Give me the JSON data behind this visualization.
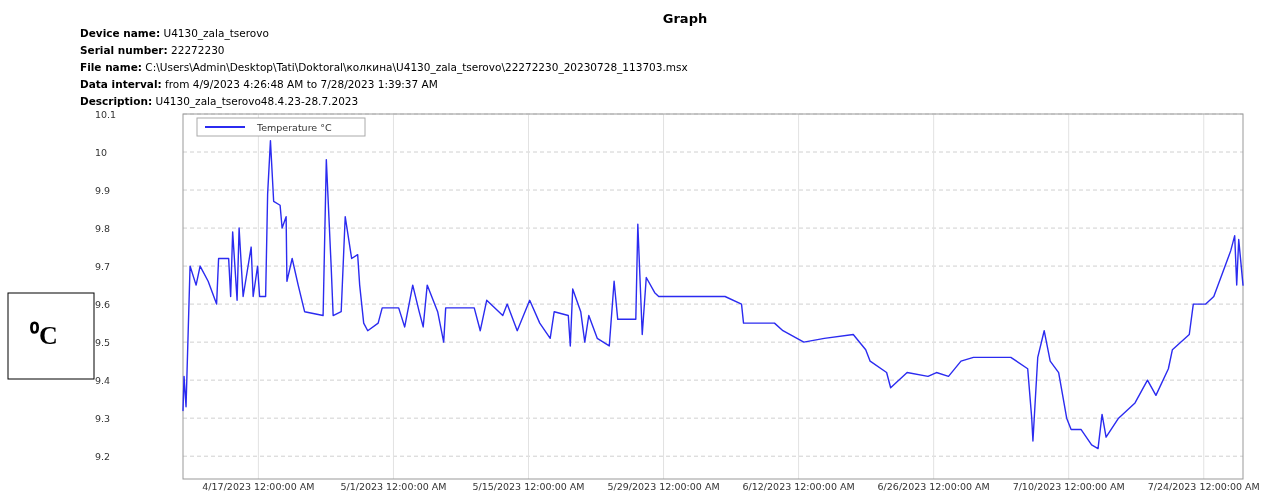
{
  "chart_data": {
    "type": "line",
    "title": "Graph",
    "annotations": [
      "Device name:  U4130_zala_tserovo",
      "Serial number:  22272230",
      "File name:  C:\\Users\\Admin\\Desktop\\Tati\\Doktoral\\колкина\\U4130_zala_tserovo\\22272230_20230728_113703.msx",
      "Data interval:  from 4/9/2023 4:26:48 AM to 7/28/2023 1:39:37 AM",
      "Description:  U4130_zala_tserovo48.4.23-28.7.2023"
    ],
    "ylabel": "⁰C",
    "xlim": [
      "2023-04-09T04:26",
      "2023-07-28T01:39"
    ],
    "xticks": [
      {
        "value": "2023-04-17",
        "label": "4/17/2023 12:00:00 AM"
      },
      {
        "value": "2023-05-01",
        "label": "5/1/2023 12:00:00 AM"
      },
      {
        "value": "2023-05-15",
        "label": "5/15/2023 12:00:00 AM"
      },
      {
        "value": "2023-05-29",
        "label": "5/29/2023 12:00:00 AM"
      },
      {
        "value": "2023-06-12",
        "label": "6/12/2023 12:00:00 AM"
      },
      {
        "value": "2023-06-26",
        "label": "6/26/2023 12:00:00 AM"
      },
      {
        "value": "2023-07-10",
        "label": "7/10/2023 12:00:00 AM"
      },
      {
        "value": "2023-07-24",
        "label": "7/24/2023 12:00:00 AM"
      }
    ],
    "ylim": [
      9.14,
      10.1
    ],
    "yticks": [
      9.2,
      9.3,
      9.4,
      9.5,
      9.6,
      9.7,
      9.8,
      9.9,
      10,
      10.1
    ],
    "grid": true,
    "legend": "top left",
    "marker": "none",
    "line_style": "solid",
    "series": [
      {
        "name": "Temperature °C",
        "color": "#2b2bf0",
        "x": [
          "2023-04-09T04:26",
          "2023-04-09T07:00",
          "2023-04-09T12:00",
          "2023-04-09T22:00",
          "2023-04-10T13:00",
          "2023-04-10T23:00",
          "2023-04-11T19:00",
          "2023-04-12T16:00",
          "2023-04-12T21:00",
          "2023-04-13T22:00",
          "2023-04-14T03:00",
          "2023-04-14T08:00",
          "2023-04-14T19:00",
          "2023-04-15T00:00",
          "2023-04-15T10:00",
          "2023-04-16T06:00",
          "2023-04-16T11:00",
          "2023-04-16T22:00",
          "2023-04-17T03:00",
          "2023-04-17T18:00",
          "2023-04-17T23:00",
          "2023-04-18T06:00",
          "2023-04-18T14:00",
          "2023-04-19T06:00",
          "2023-04-19T11:00",
          "2023-04-19T21:00",
          "2023-04-19T23:00",
          "2023-04-20T12:00",
          "2023-04-21T03:00",
          "2023-04-21T19:00",
          "2023-04-23T17:00",
          "2023-04-24T01:00",
          "2023-04-24T13:00",
          "2023-04-24T18:00",
          "2023-04-25T14:00",
          "2023-04-26T00:00",
          "2023-04-26T16:00",
          "2023-04-27T07:00",
          "2023-04-27T12:00",
          "2023-04-27T22:00",
          "2023-04-28T08:00",
          "2023-04-29T10:00",
          "2023-04-29T20:00",
          "2023-05-01T13:00",
          "2023-05-02T04:00",
          "2023-05-03T00:00",
          "2023-05-03T16:00",
          "2023-05-04T02:00",
          "2023-05-04T12:00",
          "2023-05-05T14:00",
          "2023-05-06T05:00",
          "2023-05-06T10:00",
          "2023-05-09T09:00",
          "2023-05-10T00:00",
          "2023-05-10T16:00",
          "2023-05-12T08:00",
          "2023-05-12T19:00",
          "2023-05-13T20:00",
          "2023-05-15T03:00",
          "2023-05-16T04:00",
          "2023-05-17T06:00",
          "2023-05-17T16:00",
          "2023-05-19T03:00",
          "2023-05-19T08:00",
          "2023-05-19T14:00",
          "2023-05-20T10:00",
          "2023-05-20T20:00",
          "2023-05-21T06:00",
          "2023-05-22T03:00",
          "2023-05-23T09:00",
          "2023-05-23T21:00",
          "2023-05-24T06:00",
          "2023-05-25T22:00",
          "2023-05-26T03:00",
          "2023-05-26T08:00",
          "2023-05-26T19:00",
          "2023-05-27T05:00",
          "2023-05-28T02:00",
          "2023-05-28T12:00",
          "2023-06-01T19:00",
          "2023-06-04T09:00",
          "2023-06-06T02:00",
          "2023-06-06T07:00",
          "2023-06-09T12:00",
          "2023-06-10T09:00",
          "2023-06-12T13:00",
          "2023-06-14T16:00",
          "2023-06-17T16:00",
          "2023-06-18T23:00",
          "2023-06-19T10:00",
          "2023-06-21T03:00",
          "2023-06-21T13:00",
          "2023-06-23T06:00",
          "2023-06-25T10:00",
          "2023-06-26T07:00",
          "2023-06-27T13:00",
          "2023-06-28T20:00",
          "2023-06-30T03:00",
          "2023-07-04T00:00",
          "2023-07-05T18:00",
          "2023-07-06T04:00",
          "2023-07-06T07:00",
          "2023-07-06T19:00",
          "2023-07-07T11:00",
          "2023-07-08T02:00",
          "2023-07-08T23:00",
          "2023-07-09T19:00",
          "2023-07-10T06:00",
          "2023-07-11T07:00",
          "2023-07-12T09:00",
          "2023-07-13T01:00",
          "2023-07-13T11:00",
          "2023-07-13T21:00",
          "2023-07-15T04:00",
          "2023-07-16T21:00",
          "2023-07-18T04:00",
          "2023-07-19T01:00",
          "2023-07-20T08:00",
          "2023-07-20T18:00",
          "2023-07-22T12:00",
          "2023-07-22T22:00",
          "2023-07-24T05:00",
          "2023-07-25T01:00",
          "2023-07-25T22:00",
          "2023-07-26T19:00",
          "2023-07-27T05:00",
          "2023-07-27T10:00",
          "2023-07-27T15:00",
          "2023-07-28T01:39"
        ],
        "values": [
          9.32,
          9.41,
          9.33,
          9.7,
          9.65,
          9.7,
          9.66,
          9.6,
          9.72,
          9.72,
          9.62,
          9.79,
          9.61,
          9.8,
          9.62,
          9.75,
          9.62,
          9.7,
          9.62,
          9.62,
          9.89,
          10.03,
          9.87,
          9.86,
          9.8,
          9.83,
          9.66,
          9.72,
          9.65,
          9.58,
          9.57,
          9.98,
          9.7,
          9.57,
          9.58,
          9.83,
          9.72,
          9.73,
          9.65,
          9.55,
          9.53,
          9.55,
          9.59,
          9.59,
          9.54,
          9.65,
          9.58,
          9.54,
          9.65,
          9.58,
          9.5,
          9.59,
          9.59,
          9.53,
          9.61,
          9.57,
          9.6,
          9.53,
          9.61,
          9.55,
          9.51,
          9.58,
          9.57,
          9.49,
          9.64,
          9.58,
          9.5,
          9.57,
          9.51,
          9.49,
          9.66,
          9.56,
          9.56,
          9.56,
          9.81,
          9.52,
          9.67,
          9.63,
          9.62,
          9.62,
          9.62,
          9.6,
          9.55,
          9.55,
          9.53,
          9.5,
          9.51,
          9.52,
          9.48,
          9.45,
          9.42,
          9.38,
          9.42,
          9.41,
          9.42,
          9.41,
          9.45,
          9.46,
          9.46,
          9.43,
          9.3,
          9.24,
          9.46,
          9.53,
          9.45,
          9.42,
          9.3,
          9.27,
          9.27,
          9.23,
          9.22,
          9.31,
          9.25,
          9.3,
          9.34,
          9.4,
          9.36,
          9.43,
          9.48,
          9.52,
          9.6,
          9.6,
          9.62,
          9.68,
          9.74,
          9.78,
          9.65,
          9.77,
          9.65
        ]
      }
    ]
  }
}
